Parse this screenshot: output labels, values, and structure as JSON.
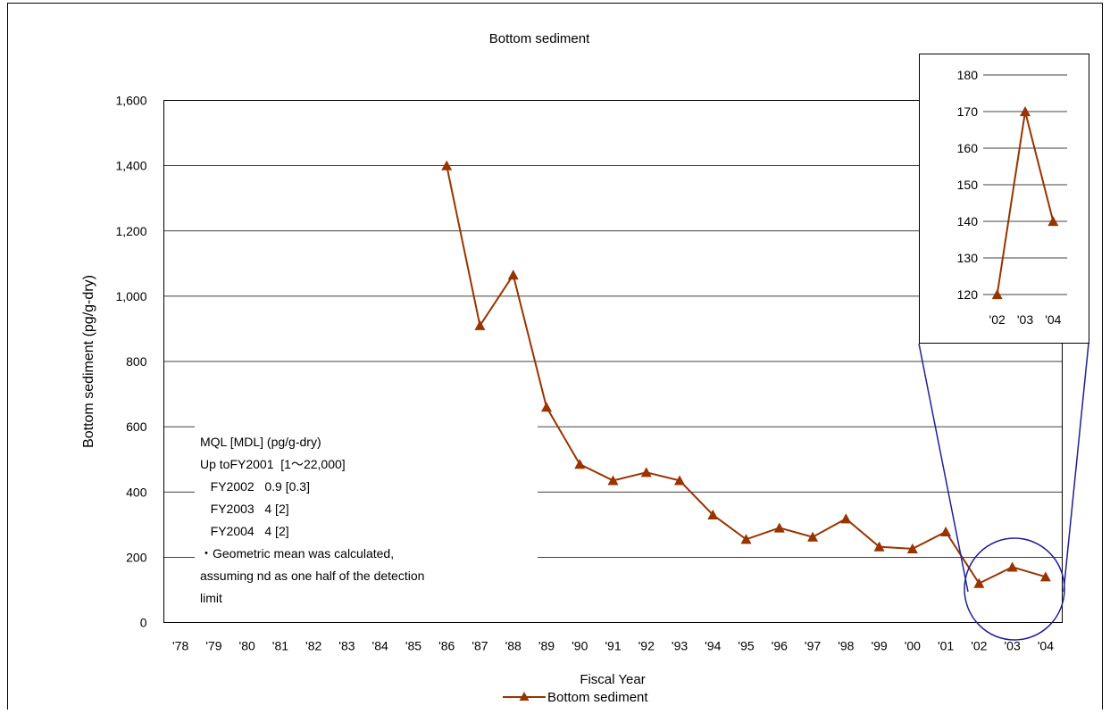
{
  "chart_data": [
    {
      "type": "line",
      "title": "Bottom sediment",
      "xlabel": "Fiscal Year",
      "ylabel": "Bottom sediment (pg/g-dry)",
      "ylim": [
        0,
        1600
      ],
      "yticks": [
        "0",
        "200",
        "400",
        "600",
        "800",
        "1,000",
        "1,200",
        "1,400",
        "1,600"
      ],
      "categories": [
        "'78",
        "'79",
        "'80",
        "'81",
        "'82",
        "'83",
        "'84",
        "'85",
        "'86",
        "'87",
        "'88",
        "'89",
        "'90",
        "'91",
        "'92",
        "'93",
        "'94",
        "'95",
        "'96",
        "'97",
        "'98",
        "'99",
        "'00",
        "'01",
        "'02",
        "'03",
        "'04"
      ],
      "grid": "horizontal",
      "legend": "bottom-center",
      "series": [
        {
          "name": "Bottom sediment",
          "color": "#993300",
          "marker": "triangle",
          "values": [
            null,
            null,
            null,
            null,
            null,
            null,
            null,
            null,
            1400,
            910,
            1065,
            660,
            485,
            435,
            460,
            435,
            330,
            255,
            290,
            262,
            318,
            232,
            226,
            278,
            120,
            170,
            140
          ]
        }
      ]
    },
    {
      "type": "line",
      "ylim": [
        120,
        180
      ],
      "yticks": [
        "120",
        "130",
        "140",
        "150",
        "160",
        "170",
        "180"
      ],
      "categories": [
        "'02",
        "'03",
        "'04"
      ],
      "grid": "horizontal",
      "series": [
        {
          "name": "Bottom sediment",
          "color": "#993300",
          "marker": "triangle",
          "values": [
            120,
            170,
            140
          ]
        }
      ]
    }
  ],
  "annotation": {
    "lines": [
      "MQL [MDL] (pg/g-dry)",
      "Up toFY2001  [1～22,000]",
      "   FY2002   0.9 [0.3]",
      "   FY2003   4 [2]",
      "   FY2004   4 [2]",
      "・Geometric mean was calculated,",
      "assuming nd as one half of the detection",
      "limit"
    ]
  },
  "colors": {
    "series": "#993300",
    "zoom": "#1f1f99",
    "grid": "#000000"
  }
}
